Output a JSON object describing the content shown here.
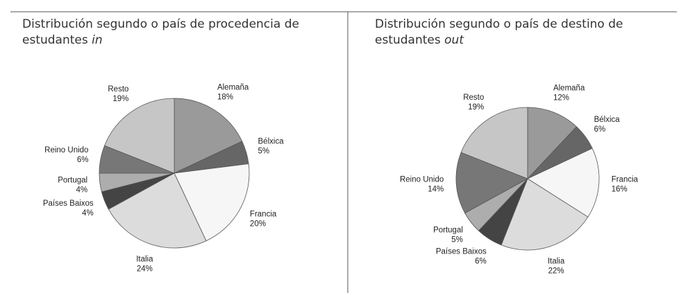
{
  "chart_data": [
    {
      "type": "pie",
      "title": "Distribución segundo o país de procedencia de estudantes",
      "title_italic": "in",
      "categories": [
        "Alemaña",
        "Bélxica",
        "Francia",
        "Italia",
        "Países Baixos",
        "Portugal",
        "Reino Unido",
        "Resto"
      ],
      "values": [
        18,
        5,
        20,
        24,
        4,
        4,
        6,
        19
      ],
      "value_labels": [
        "18%",
        "5%",
        "20%",
        "24%",
        "4%",
        "4%",
        "6%",
        "19%"
      ],
      "colors": [
        "#9a9a9a",
        "#666666",
        "#f6f6f6",
        "#dcdcdc",
        "#444444",
        "#adadad",
        "#777777",
        "#c6c6c6"
      ]
    },
    {
      "type": "pie",
      "title": "Distribución segundo o país de destino de estudantes",
      "title_italic": "out",
      "categories": [
        "Alemaña",
        "Bélxica",
        "Francia",
        "Italia",
        "Países Baixos",
        "Portugal",
        "Reino Unido",
        "Resto"
      ],
      "values": [
        12,
        6,
        16,
        22,
        6,
        5,
        14,
        19
      ],
      "value_labels": [
        "12%",
        "6%",
        "16%",
        "22%",
        "6%",
        "5%",
        "14%",
        "19%"
      ],
      "colors": [
        "#9a9a9a",
        "#666666",
        "#f6f6f6",
        "#dcdcdc",
        "#444444",
        "#adadad",
        "#777777",
        "#c6c6c6"
      ]
    }
  ]
}
